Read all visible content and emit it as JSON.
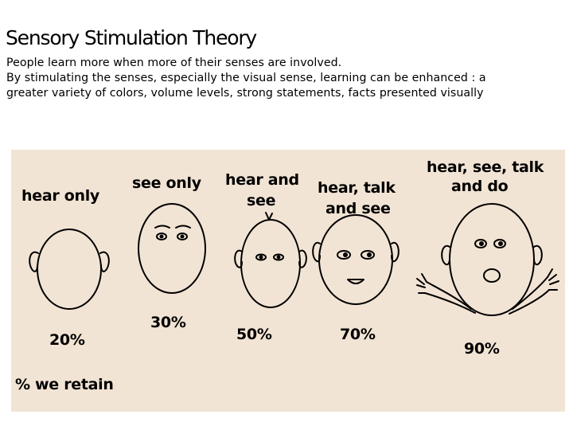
{
  "slide": {
    "title": "Sensory Stimulation Theory",
    "body_lines": [
      "People learn more when more of their senses are involved.",
      "By stimulating the senses, especially the visual sense, learning can be enhanced : a",
      "greater variety of colors, volume levels, strong statements, facts presented visually"
    ]
  },
  "figure": {
    "background_color": "#f2e4d4",
    "faces": [
      {
        "label": "hear only",
        "percent": "20%"
      },
      {
        "label": "see only",
        "percent": "30%"
      },
      {
        "label_lines": [
          "hear and",
          "see"
        ],
        "percent": "50%"
      },
      {
        "label_lines": [
          "hear, talk",
          "and see"
        ],
        "percent": "70%"
      },
      {
        "label_lines": [
          "hear, see, talk",
          "and do"
        ],
        "percent": "90%"
      }
    ],
    "caption": "% we retain"
  }
}
